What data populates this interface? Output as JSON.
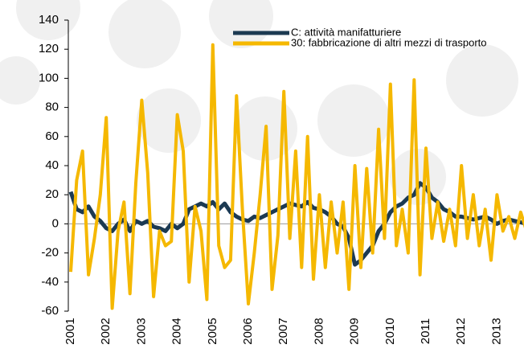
{
  "chart_data": {
    "type": "line",
    "categories": [
      "2001",
      null,
      null,
      null,
      null,
      null,
      "2002",
      null,
      null,
      null,
      null,
      null,
      "2003",
      null,
      null,
      null,
      null,
      null,
      "2004",
      null,
      null,
      null,
      null,
      null,
      "2005",
      null,
      null,
      null,
      null,
      null,
      "2006",
      null,
      null,
      null,
      null,
      null,
      "2007",
      null,
      null,
      null,
      null,
      null,
      "2008",
      null,
      null,
      null,
      null,
      null,
      "2009",
      null,
      null,
      null,
      null,
      null,
      "2010",
      null,
      null,
      null,
      null,
      null,
      "2011",
      null,
      null,
      null,
      null,
      null,
      "2012",
      null,
      null,
      null,
      null,
      null,
      "2013",
      null,
      null,
      null,
      null,
      null
    ],
    "series": [
      {
        "name": "C: attività manifatturiere",
        "color": "#1c3a52",
        "values": [
          22,
          10,
          8,
          12,
          5,
          2,
          -3,
          -5,
          0,
          3,
          -5,
          2,
          0,
          2,
          -2,
          -3,
          -5,
          0,
          -3,
          0,
          10,
          12,
          14,
          12,
          15,
          10,
          14,
          8,
          5,
          3,
          2,
          5,
          4,
          6,
          8,
          10,
          12,
          14,
          13,
          12,
          15,
          11,
          10,
          8,
          5,
          0,
          -2,
          -10,
          -28,
          -25,
          -20,
          -15,
          -5,
          0,
          8,
          12,
          14,
          18,
          20,
          28,
          25,
          18,
          15,
          10,
          8,
          5,
          5,
          4,
          3,
          4,
          5,
          3,
          0,
          2,
          3,
          2,
          1,
          0
        ]
      },
      {
        "name": "30: fabbricazione di altri mezzi di trasporto",
        "color": "#f5b800",
        "values": [
          -33,
          30,
          50,
          -35,
          -10,
          20,
          73,
          -58,
          -5,
          15,
          -48,
          28,
          85,
          35,
          -50,
          -5,
          -15,
          -12,
          75,
          50,
          -40,
          12,
          -5,
          -52,
          123,
          -15,
          -30,
          -25,
          88,
          10,
          -55,
          -20,
          20,
          67,
          -45,
          -8,
          91,
          -10,
          50,
          -30,
          60,
          -38,
          20,
          -30,
          15,
          -20,
          15,
          -45,
          40,
          -30,
          38,
          -20,
          65,
          -10,
          96,
          -15,
          10,
          -20,
          99,
          -35,
          52,
          -10,
          15,
          -12,
          10,
          -15,
          40,
          -10,
          20,
          -15,
          10,
          -25,
          20,
          -5,
          5,
          -10,
          8,
          -5
        ]
      }
    ],
    "ylim": [
      -60,
      140
    ],
    "yticks": [
      -60,
      -40,
      -20,
      0,
      20,
      40,
      60,
      80,
      100,
      120,
      140
    ]
  }
}
